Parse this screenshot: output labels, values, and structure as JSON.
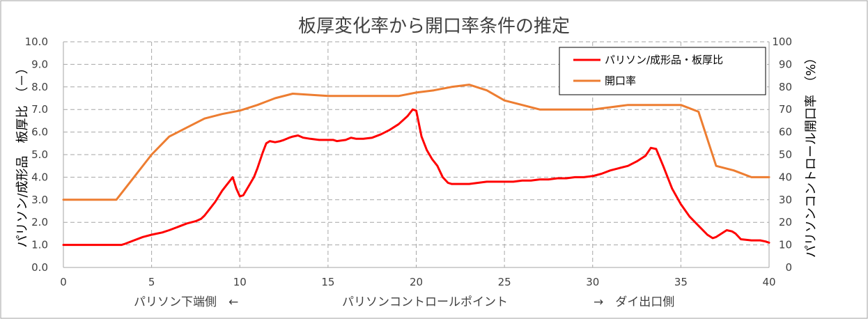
{
  "chart_data": {
    "type": "line",
    "title": "板厚変化率から開口率条件の推定",
    "x_axis": {
      "range": [
        0,
        40
      ],
      "ticks": [
        "0",
        "5",
        "10",
        "15",
        "20",
        "25",
        "30",
        "35",
        "40"
      ],
      "label": "パリソンコントロールポイント",
      "left_note": "パリソン下端側　←",
      "right_note": "→　ダイ出口側"
    },
    "y_axis_left": {
      "range": [
        0,
        10
      ],
      "ticks": [
        "0.0",
        "1.0",
        "2.0",
        "3.0",
        "4.0",
        "5.0",
        "6.0",
        "7.0",
        "8.0",
        "9.0",
        "10.0"
      ],
      "label": "パリソン/成形品　板厚比　（－）"
    },
    "y_axis_right": {
      "range": [
        0,
        100
      ],
      "ticks": [
        "0",
        "10",
        "20",
        "30",
        "40",
        "50",
        "60",
        "70",
        "80",
        "90",
        "100"
      ],
      "label": "パリソンコントロール開口率　（%）"
    },
    "grid": true,
    "legend_position": "top-right",
    "series": [
      {
        "name": "パリソン/成形品・板厚比",
        "axis": "left",
        "color": "#ff0000",
        "x": [
          0,
          1,
          2,
          3,
          3.3,
          3.5,
          4,
          4.5,
          5,
          5.3,
          5.6,
          6,
          6.5,
          7,
          7.5,
          7.8,
          8,
          8.3,
          8.6,
          9,
          9.3,
          9.6,
          9.8,
          10,
          10.2,
          10.5,
          10.8,
          11,
          11.3,
          11.5,
          11.7,
          12,
          12.3,
          12.5,
          12.8,
          13,
          13.3,
          13.6,
          14,
          14.5,
          15,
          15.3,
          15.5,
          16,
          16.3,
          16.6,
          17,
          17.5,
          18,
          18.5,
          19,
          19.5,
          19.8,
          20,
          20.3,
          20.6,
          20.9,
          21.2,
          21.5,
          21.8,
          22,
          22.2,
          22.5,
          23,
          23.5,
          24,
          24.5,
          25,
          25.5,
          26,
          26.5,
          27,
          27.5,
          28,
          28.5,
          29,
          29.5,
          30,
          30.5,
          31,
          31.5,
          32,
          32.5,
          33,
          33.3,
          33.6,
          34,
          34.5,
          35,
          35.5,
          36,
          36.5,
          36.8,
          37,
          37.3,
          37.6,
          37.9,
          38.1,
          38.4,
          39,
          39.5,
          39.8,
          40
        ],
        "y": [
          1.0,
          1.0,
          1.0,
          1.0,
          1.0,
          1.05,
          1.2,
          1.35,
          1.45,
          1.5,
          1.55,
          1.65,
          1.8,
          1.95,
          2.05,
          2.15,
          2.3,
          2.6,
          2.9,
          3.4,
          3.7,
          4.0,
          3.5,
          3.15,
          3.2,
          3.6,
          4.0,
          4.4,
          5.1,
          5.5,
          5.6,
          5.55,
          5.6,
          5.65,
          5.75,
          5.8,
          5.85,
          5.75,
          5.7,
          5.65,
          5.65,
          5.65,
          5.6,
          5.65,
          5.75,
          5.7,
          5.7,
          5.75,
          5.9,
          6.1,
          6.35,
          6.7,
          7.0,
          6.95,
          5.8,
          5.2,
          4.8,
          4.5,
          4.0,
          3.75,
          3.7,
          3.7,
          3.7,
          3.7,
          3.75,
          3.8,
          3.8,
          3.8,
          3.8,
          3.85,
          3.85,
          3.9,
          3.9,
          3.95,
          3.95,
          4.0,
          4.0,
          4.05,
          4.15,
          4.3,
          4.4,
          4.5,
          4.7,
          4.95,
          5.3,
          5.25,
          4.5,
          3.5,
          2.8,
          2.25,
          1.85,
          1.45,
          1.3,
          1.35,
          1.5,
          1.65,
          1.6,
          1.5,
          1.25,
          1.2,
          1.2,
          1.15,
          1.1
        ]
      },
      {
        "name": "開口率",
        "axis": "right",
        "color": "#ed7d31",
        "x": [
          0,
          1,
          2,
          3,
          4,
          5,
          6,
          7,
          8,
          9,
          10,
          11,
          12,
          13,
          14,
          15,
          16,
          17,
          18,
          19,
          20,
          21,
          22,
          23,
          24,
          25,
          26,
          27,
          28,
          29,
          30,
          31,
          32,
          33,
          34,
          35,
          36,
          37,
          38,
          39,
          40
        ],
        "y": [
          30,
          30,
          30,
          30,
          40,
          50,
          58,
          62,
          66,
          68,
          69.5,
          72,
          75,
          77,
          76.5,
          76,
          76,
          76,
          76,
          76,
          77.5,
          78.5,
          80,
          81,
          78.5,
          74,
          72,
          70,
          70,
          70,
          70,
          71,
          72,
          72,
          72,
          72,
          69,
          45,
          43,
          40,
          40
        ]
      }
    ]
  }
}
